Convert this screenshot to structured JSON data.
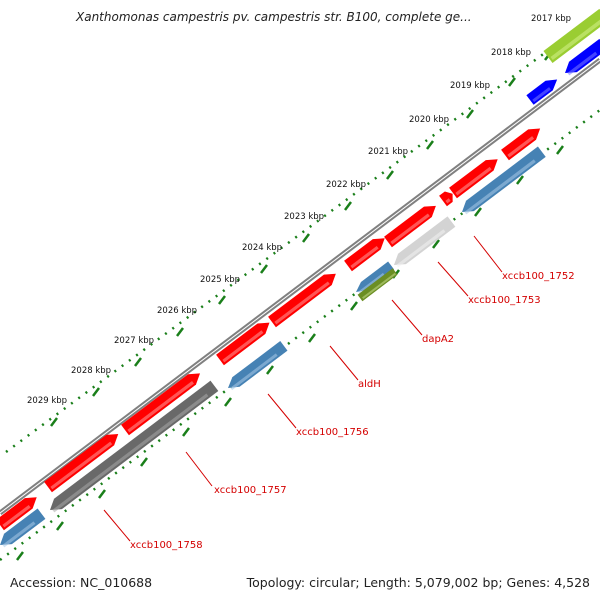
{
  "title": "Xanthomonas campestris pv. campestris str. B100, complete ge...",
  "footer": {
    "accession_label": "Accession:",
    "accession": "NC_010688",
    "summary": "Topology: circular; Length: 5,079,002 bp; Genes: 4,528"
  },
  "ruler_labels": [
    "2017 kbp",
    "2018 kbp",
    "2019 kbp",
    "2020 kbp",
    "2021 kbp",
    "2022 kbp",
    "2023 kbp",
    "2024 kbp",
    "2025 kbp",
    "2026 kbp",
    "2027 kbp",
    "2028 kbp",
    "2029 kbp"
  ],
  "gene_labels": [
    "xccb100_1752",
    "xccb100_1753",
    "dapA2",
    "aldH",
    "xccb100_1756",
    "xccb100_1757",
    "xccb100_1758"
  ],
  "colors": {
    "forward_gene": "#ff0000",
    "reverse_gene": "#4682b4",
    "hypothetical_gene": "#d3d3d3",
    "dark_gene": "#696969",
    "dapA2_gene": "#6b8e23",
    "top_lime": "#9acd32",
    "top_blue": "#0000ff",
    "backbone": "#808080",
    "ruler_ticks": "#1a7f1a",
    "label_text": "#d40000"
  }
}
